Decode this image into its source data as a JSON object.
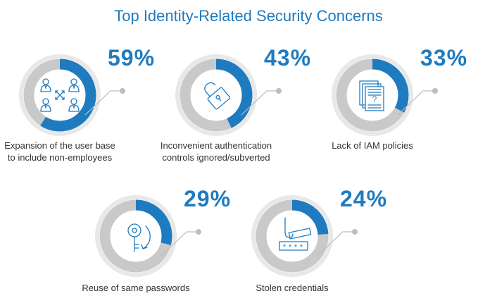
{
  "title": "Top Identity-Related Security Concerns",
  "colors": {
    "accent": "#1f7bbf",
    "ring_track": "#c9c9c9",
    "halo": "#e8e8e8",
    "connector": "#bdbdbd",
    "icon_stroke": "#1f7bbf"
  },
  "chart_data": {
    "type": "donut",
    "title": "Top Identity-Related Security Concerns",
    "unit": "%",
    "ylim": [
      0,
      100
    ],
    "categories": [
      "Expansion of the user base to include non-employees",
      "Inconvenient authentication controls ignored/subverted",
      "Lack of IAM policies",
      "Reuse of same passwords",
      "Stolen credentials"
    ],
    "values": [
      59,
      43,
      33,
      29,
      24
    ],
    "items": [
      {
        "id": "user-base",
        "value": 59,
        "label": "59%",
        "caption_lines": [
          "Expansion of the user base",
          "to include non-employees"
        ],
        "icon": "users-network-icon"
      },
      {
        "id": "authentication",
        "value": 43,
        "label": "43%",
        "caption_lines": [
          "Inconvenient authentication",
          "controls ignored/subverted"
        ],
        "icon": "padlock-icon"
      },
      {
        "id": "iam-policies",
        "value": 33,
        "label": "33%",
        "caption_lines": [
          "Lack of IAM policies"
        ],
        "icon": "documents-question-icon"
      },
      {
        "id": "password-reuse",
        "value": 29,
        "label": "29%",
        "caption_lines": [
          "Reuse of same passwords"
        ],
        "icon": "key-cycle-icon"
      },
      {
        "id": "stolen-credentials",
        "value": 24,
        "label": "24%",
        "caption_lines": [
          "Stolen credentials"
        ],
        "icon": "password-hook-icon"
      }
    ]
  }
}
